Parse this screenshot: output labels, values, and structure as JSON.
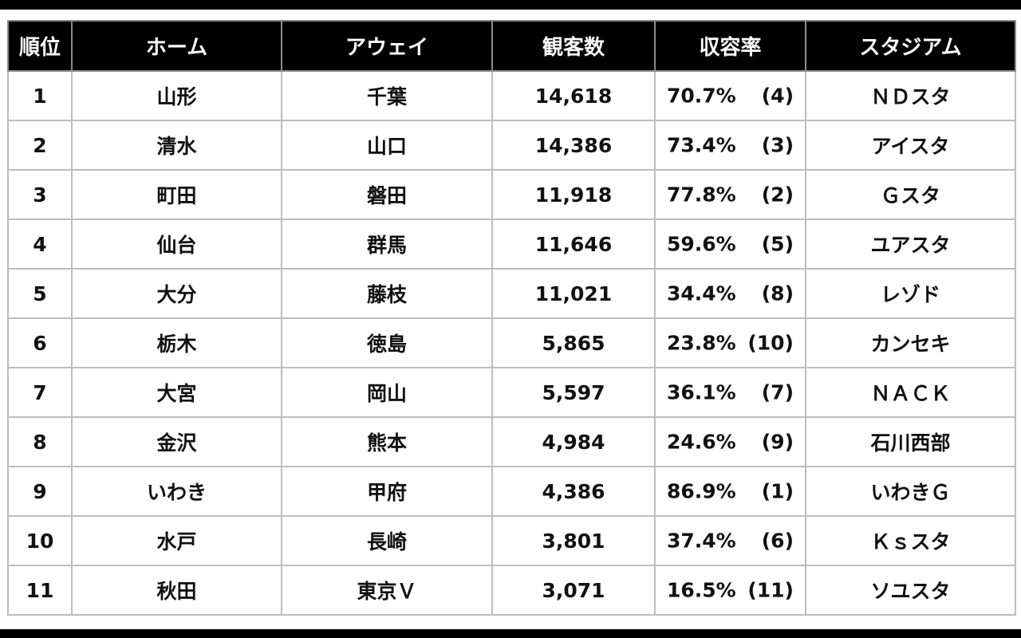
{
  "headers": {
    "rank": "順位",
    "home": "ホーム",
    "away": "アウェイ",
    "attendance": "観客数",
    "capacity_rate": "収容率",
    "stadium": "スタジアム"
  },
  "rows": [
    {
      "rank": "1",
      "home": "山形",
      "away": "千葉",
      "attendance": "14,618",
      "rate": "70.7%",
      "rate_rank": "(4)",
      "stadium": "ＮＤスタ"
    },
    {
      "rank": "2",
      "home": "清水",
      "away": "山口",
      "attendance": "14,386",
      "rate": "73.4%",
      "rate_rank": "(3)",
      "stadium": "アイスタ"
    },
    {
      "rank": "3",
      "home": "町田",
      "away": "磐田",
      "attendance": "11,918",
      "rate": "77.8%",
      "rate_rank": "(2)",
      "stadium": "Ｇスタ"
    },
    {
      "rank": "4",
      "home": "仙台",
      "away": "群馬",
      "attendance": "11,646",
      "rate": "59.6%",
      "rate_rank": "(5)",
      "stadium": "ユアスタ"
    },
    {
      "rank": "5",
      "home": "大分",
      "away": "藤枝",
      "attendance": "11,021",
      "rate": "34.4%",
      "rate_rank": "(8)",
      "stadium": "レゾド"
    },
    {
      "rank": "6",
      "home": "栃木",
      "away": "徳島",
      "attendance": "5,865",
      "rate": "23.8%",
      "rate_rank": "(10)",
      "stadium": "カンセキ"
    },
    {
      "rank": "7",
      "home": "大宮",
      "away": "岡山",
      "attendance": "5,597",
      "rate": "36.1%",
      "rate_rank": "(7)",
      "stadium": "ＮＡＣＫ"
    },
    {
      "rank": "8",
      "home": "金沢",
      "away": "熊本",
      "attendance": "4,984",
      "rate": "24.6%",
      "rate_rank": "(9)",
      "stadium": "石川西部"
    },
    {
      "rank": "9",
      "home": "いわき",
      "away": "甲府",
      "attendance": "4,386",
      "rate": "86.9%",
      "rate_rank": "(1)",
      "stadium": "いわきＧ"
    },
    {
      "rank": "10",
      "home": "水戸",
      "away": "長崎",
      "attendance": "3,801",
      "rate": "37.4%",
      "rate_rank": "(6)",
      "stadium": "Ｋｓスタ"
    },
    {
      "rank": "11",
      "home": "秋田",
      "away": "東京Ｖ",
      "attendance": "3,071",
      "rate": "16.5%",
      "rate_rank": "(11)",
      "stadium": "ソユスタ"
    }
  ],
  "colors": {
    "header_bg": "#000000",
    "header_text": "#ffffff",
    "grid": "#bdbdbd",
    "body_text": "#111111"
  }
}
